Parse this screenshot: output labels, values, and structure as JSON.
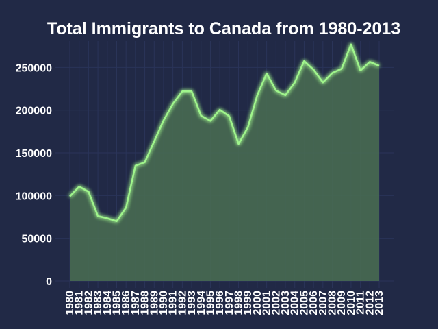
{
  "chart_data": {
    "type": "area",
    "title": "Total Immigrants to Canada from 1980-2013",
    "xlabel": "",
    "ylabel": "",
    "x": [
      "1980",
      "1981",
      "1982",
      "1983",
      "1984",
      "1985",
      "1986",
      "1987",
      "1988",
      "1989",
      "1990",
      "1991",
      "1992",
      "1993",
      "1994",
      "1995",
      "1996",
      "1997",
      "1998",
      "1999",
      "2000",
      "2001",
      "2002",
      "2003",
      "2004",
      "2005",
      "2006",
      "2007",
      "2008",
      "2009",
      "2010",
      "2011",
      "2012",
      "2013"
    ],
    "series": [
      {
        "values": [
          99000,
          110500,
          104500,
          76000,
          73500,
          70000,
          86000,
          135000,
          139000,
          163500,
          188000,
          207500,
          222000,
          222000,
          193500,
          187500,
          200500,
          193000,
          160500,
          180000,
          217500,
          243000,
          223000,
          217500,
          232500,
          257500,
          247500,
          232500,
          243500,
          248500,
          277000,
          246500,
          256500,
          252000
        ],
        "color": "#A0F58C"
      }
    ],
    "xlim": [
      "1980",
      "2013"
    ],
    "ylim": [
      0,
      285000
    ],
    "yticks": [
      0,
      50000,
      100000,
      150000,
      200000,
      250000
    ],
    "grid": true,
    "background": "#212946",
    "line_color": "#A0F58C",
    "fill_color": "#4A6E52",
    "title_color": "#ffffff"
  }
}
